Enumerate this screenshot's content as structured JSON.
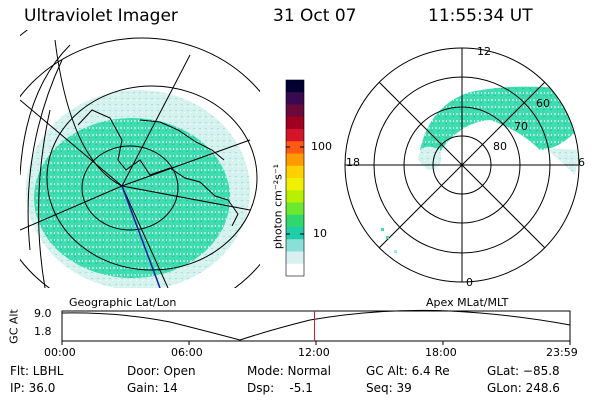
{
  "header": {
    "title": "Ultraviolet Imager",
    "date": "31 Oct 07",
    "time": "11:55:34 UT"
  },
  "colorbar": {
    "label": "photon cm⁻²s⁻¹",
    "scale": "log",
    "ticks": [
      "100",
      "10"
    ],
    "colors": [
      "#000033",
      "#3a0a50",
      "#6a0a3a",
      "#a0001e",
      "#d4142a",
      "#ff5a14",
      "#ff9a00",
      "#ffd000",
      "#f0f000",
      "#b8f000",
      "#6ce830",
      "#2fd86a",
      "#20cda8",
      "#8ae0d8",
      "#d8f0f0",
      "#ffffff"
    ]
  },
  "left_map": {
    "caption": "Geographic Lat/Lon"
  },
  "right_map": {
    "caption": "Apex MLat/MLT",
    "mlt_labels": {
      "top": "12",
      "left": "18",
      "right": "6",
      "bottom": "0"
    },
    "lat_labels": [
      "60",
      "70",
      "80"
    ]
  },
  "timeline": {
    "ylabel": "GC Alt",
    "ticks_y": [
      "9.0",
      "1.8"
    ],
    "ticks_x": [
      "00:00",
      "06:00",
      "12:00",
      "18:00",
      "23:59"
    ],
    "marker_time_hours": 11.93
  },
  "info": {
    "filter": "Flt: LBHL",
    "ip": "IP: 36.0",
    "door": "Door: Open",
    "gain": "Gain: 14",
    "mode": "Mode: Normal",
    "dsp": "Dsp:    -5.1",
    "gc_alt": "GC Alt: 6.4 Re",
    "seq": "Seq: 39",
    "glat": "GLat: −85.8",
    "glon": "GLon: 248.6"
  }
}
